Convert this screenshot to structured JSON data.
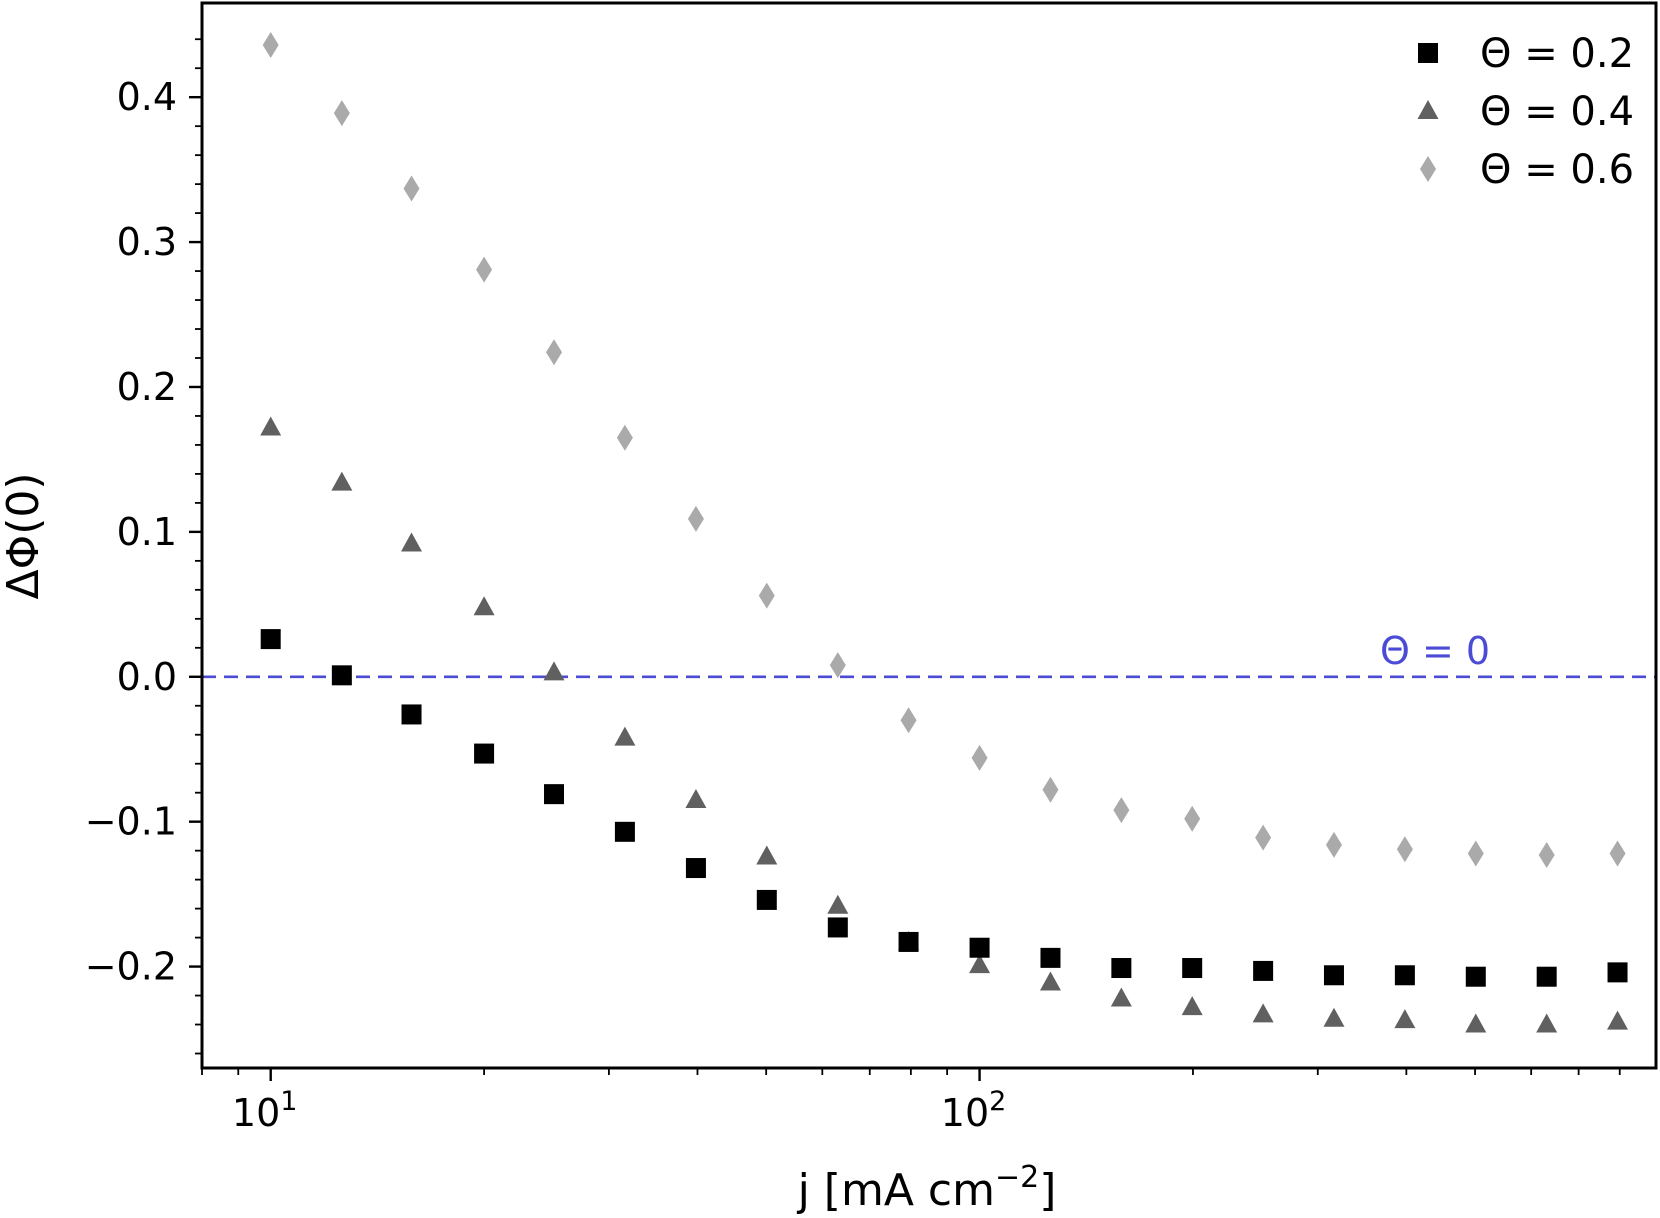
{
  "chart_data": {
    "type": "scatter",
    "xscale": "log",
    "xlim": [
      8,
      900
    ],
    "ylim": [
      -0.27,
      0.465
    ],
    "xlabel": {
      "main": "j [mA cm",
      "sup": "−2",
      "close": "]"
    },
    "ylabel": "ΔΦ(0)",
    "xticks": [
      {
        "value": 10,
        "base": "10",
        "exp": "1"
      },
      {
        "value": 100,
        "base": "10",
        "exp": "2"
      }
    ],
    "yticks": [
      {
        "value": -0.2,
        "label": "−0.2"
      },
      {
        "value": -0.1,
        "label": "−0.1"
      },
      {
        "value": 0.0,
        "label": "0.0"
      },
      {
        "value": 0.1,
        "label": "0.1"
      },
      {
        "value": 0.2,
        "label": "0.2"
      },
      {
        "value": 0.3,
        "label": "0.3"
      },
      {
        "value": 0.4,
        "label": "0.4"
      }
    ],
    "x": [
      10,
      12.6,
      15.8,
      20,
      25.1,
      31.6,
      39.8,
      50.1,
      63.1,
      79.4,
      100,
      125.9,
      158.5,
      199.5,
      251.2,
      316.2,
      398.1,
      501.2,
      631,
      794.3
    ],
    "series": [
      {
        "name": "Θ = 0.2",
        "marker": "square",
        "color": "#000000",
        "values": [
          0.026,
          0.001,
          -0.026,
          -0.053,
          -0.081,
          -0.107,
          -0.132,
          -0.154,
          -0.173,
          -0.183,
          -0.187,
          -0.194,
          -0.201,
          -0.201,
          -0.203,
          -0.206,
          -0.206,
          -0.207,
          -0.207,
          -0.204
        ]
      },
      {
        "name": "Θ = 0.4",
        "marker": "triangle",
        "color": "#606060",
        "values": [
          0.172,
          0.134,
          0.092,
          0.048,
          0.003,
          -0.042,
          -0.085,
          -0.124,
          -0.158,
          -0.183,
          -0.199,
          -0.211,
          -0.222,
          -0.228,
          -0.233,
          -0.236,
          -0.237,
          -0.24,
          -0.24,
          -0.238
        ]
      },
      {
        "name": "Θ = 0.6",
        "marker": "diamond",
        "color": "#aaaaaa",
        "values": [
          0.436,
          0.389,
          0.337,
          0.281,
          0.224,
          0.165,
          0.109,
          0.056,
          0.008,
          -0.03,
          -0.056,
          -0.078,
          -0.092,
          -0.098,
          -0.111,
          -0.116,
          -0.119,
          -0.122,
          -0.123,
          -0.122
        ]
      }
    ],
    "reference_line": {
      "y": 0,
      "color": "#4b4bd6",
      "style": "dashed",
      "label": "Θ = 0"
    },
    "legend": "top-right",
    "grid": false
  }
}
